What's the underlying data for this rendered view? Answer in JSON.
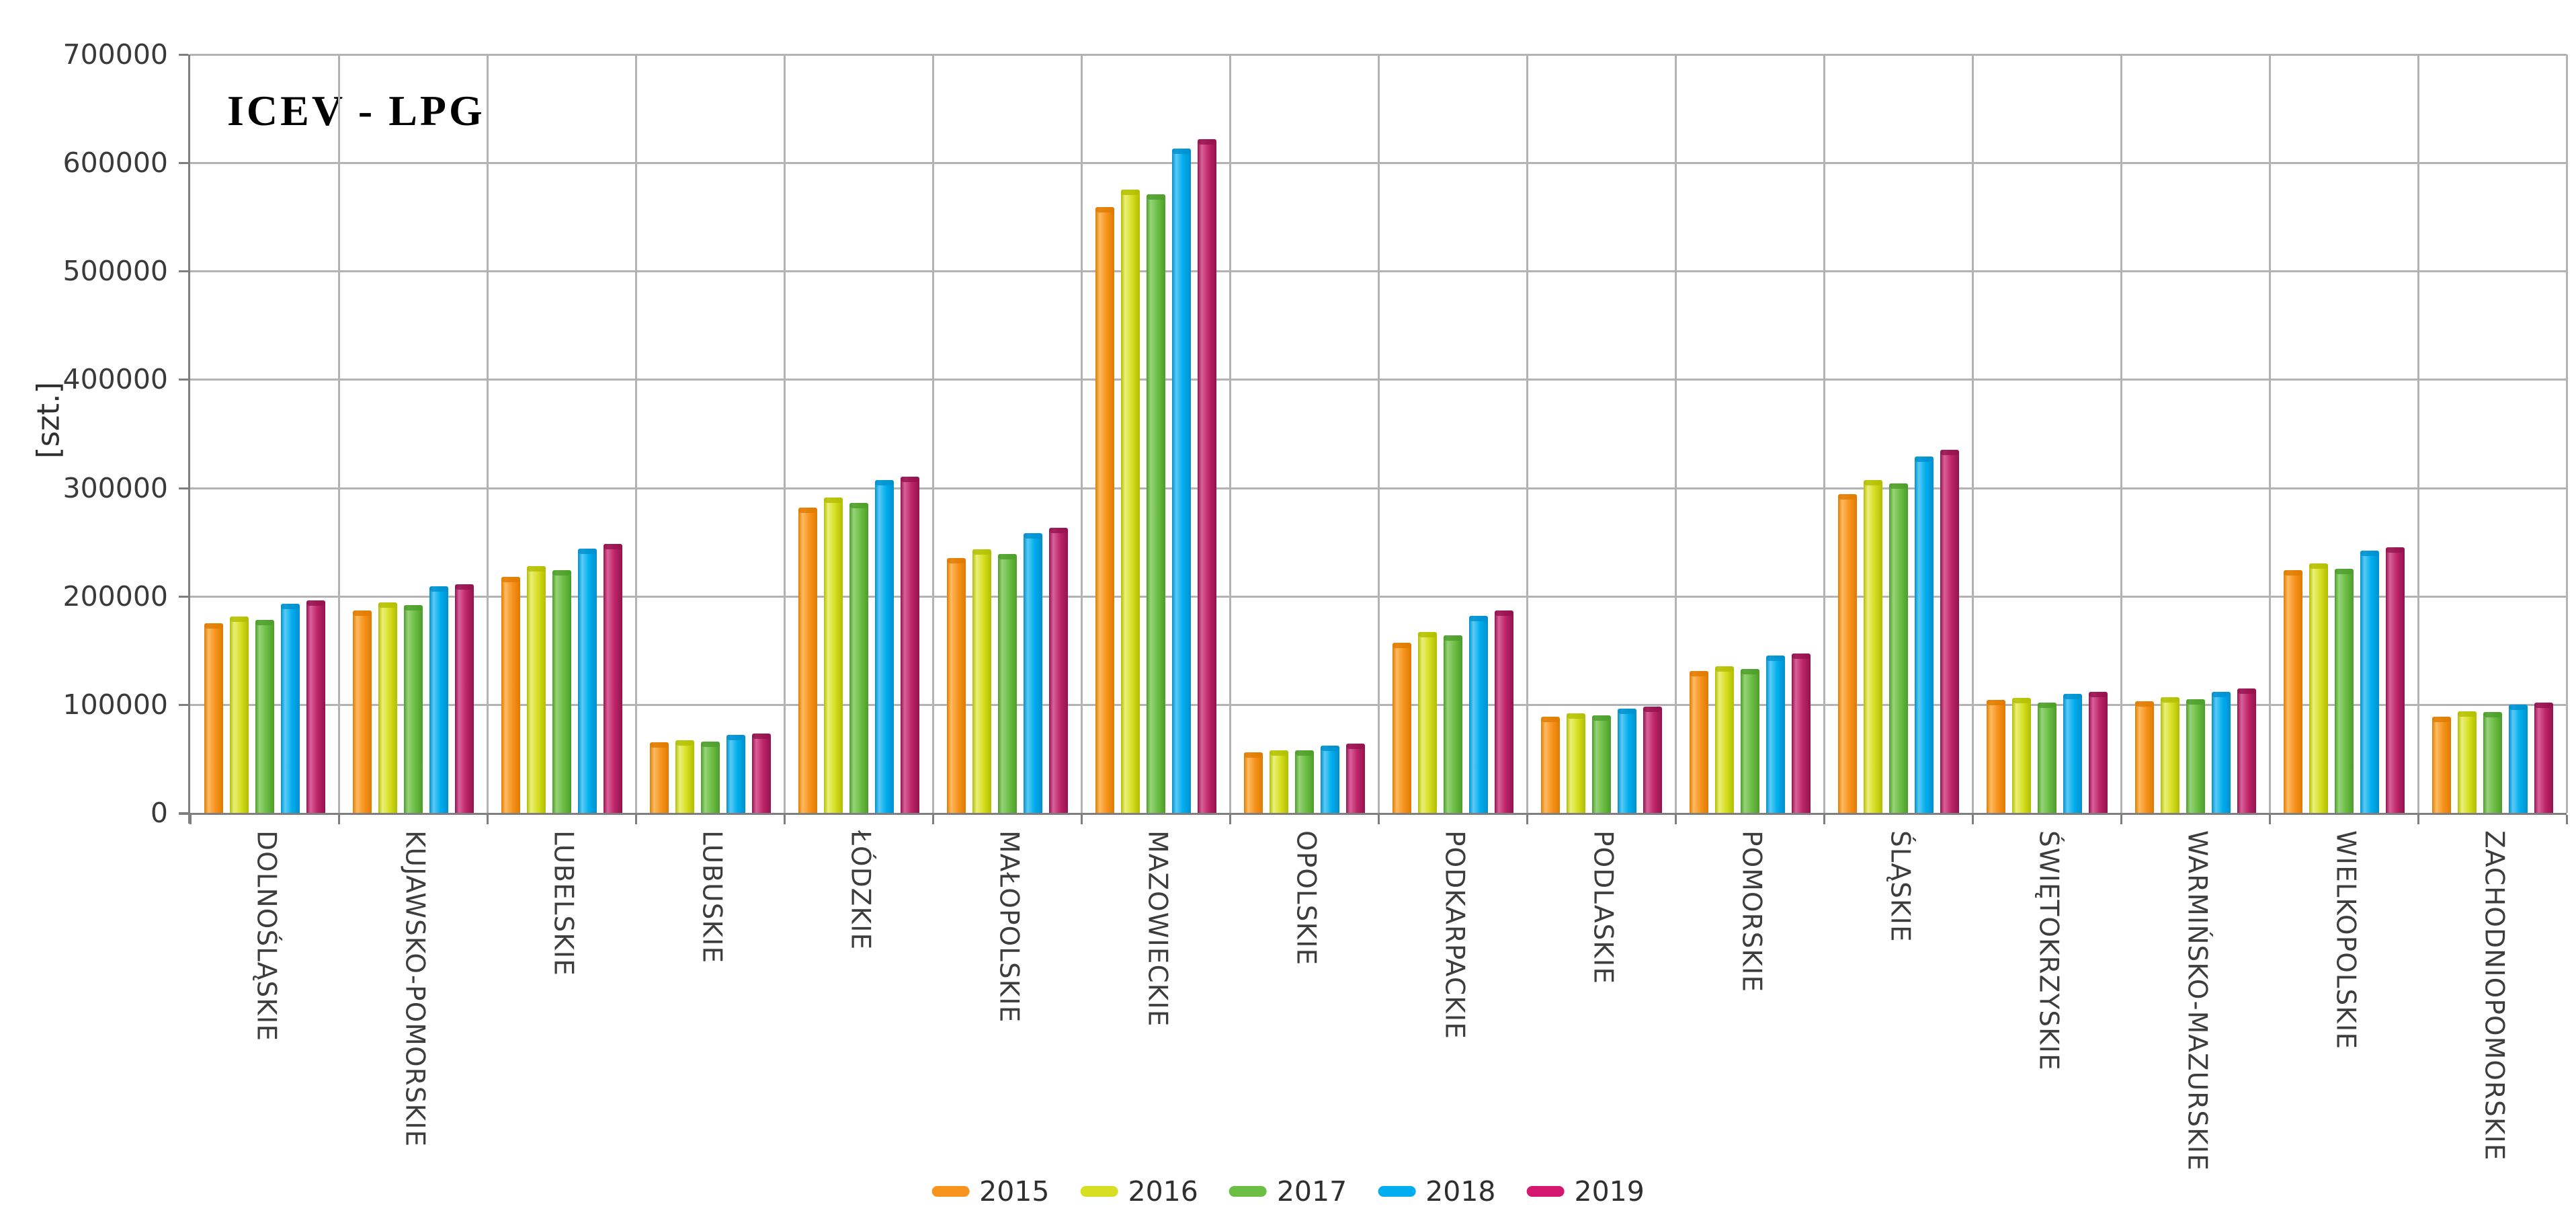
{
  "title": "ICEV - LPG",
  "y_axis_title": "[szt.]",
  "chart_data": {
    "type": "bar",
    "title": "ICEV - LPG",
    "xlabel": "",
    "ylabel": "[szt.]",
    "ylim": [
      0,
      700000
    ],
    "y_tick_step": 100000,
    "y_tick_labels": [
      "0",
      "100000",
      "200000",
      "300000",
      "400000",
      "500000",
      "600000",
      "700000"
    ],
    "grid": true,
    "legend_position": "bottom",
    "categories": [
      "DOLNOŚLĄSKIE",
      "KUJAWSKO-POMORSKIE",
      "LUBELSKIE",
      "LUBUSKIE",
      "ŁÓDZKIE",
      "MAŁOPOLSKIE",
      "MAZOWIECKIE",
      "OPOLSKIE",
      "PODKARPACKIE",
      "PODLASKIE",
      "POMORSKIE",
      "ŚLĄSKIE",
      "ŚWIĘTOKRZYSKIE",
      "WARMIŃSKO-MAZURSKIE",
      "WIELKOPOLSKIE",
      "ZACHODNIOPOMORSKIE"
    ],
    "series": [
      {
        "name": "2015",
        "color": "#F7941E",
        "color_light": "#FDBB62",
        "color_dark": "#E07B00",
        "values": [
          175000,
          187000,
          218000,
          65000,
          282000,
          235000,
          559000,
          56000,
          157000,
          89000,
          131000,
          294000,
          104000,
          103000,
          224000,
          89000
        ]
      },
      {
        "name": "2016",
        "color": "#D7DF23",
        "color_light": "#EAEF7A",
        "color_dark": "#B2BE00",
        "values": [
          181000,
          194000,
          228000,
          67000,
          291000,
          243000,
          575000,
          58000,
          167000,
          92000,
          135000,
          307000,
          106000,
          107000,
          230000,
          94000
        ]
      },
      {
        "name": "2017",
        "color": "#6CBE45",
        "color_light": "#97D378",
        "color_dark": "#4C9E2A",
        "values": [
          178000,
          192000,
          224000,
          66000,
          286000,
          239000,
          571000,
          58000,
          164000,
          90000,
          133000,
          304000,
          102000,
          105000,
          225000,
          93000
        ]
      },
      {
        "name": "2018",
        "color": "#00AEEF",
        "color_light": "#5BCBF5",
        "color_dark": "#0090CE",
        "values": [
          193000,
          209000,
          244000,
          72000,
          307000,
          258000,
          613000,
          62000,
          182000,
          96000,
          145000,
          329000,
          110000,
          112000,
          242000,
          100000
        ]
      },
      {
        "name": "2019",
        "color": "#D5186F",
        "color_light": "#D9619A",
        "color_dark": "#93134F",
        "bar_base_color": "#BE2568",
        "values": [
          196000,
          211000,
          248000,
          73000,
          310000,
          263000,
          622000,
          64000,
          187000,
          98000,
          147000,
          335000,
          112000,
          115000,
          245000,
          102000
        ]
      }
    ]
  }
}
